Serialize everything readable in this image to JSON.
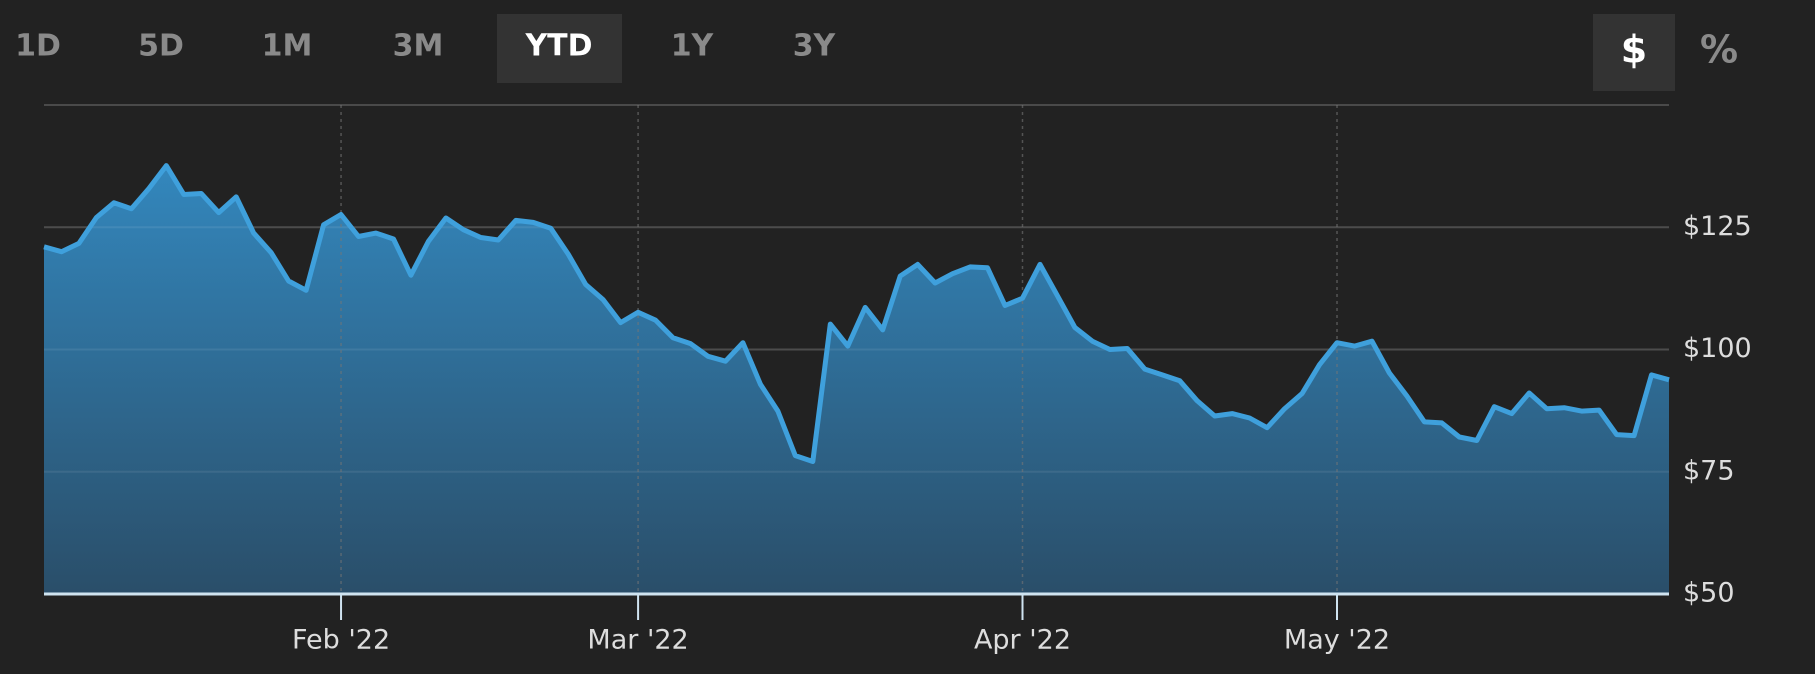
{
  "controls": {
    "ranges": [
      "1D",
      "5D",
      "1M",
      "3M",
      "YTD",
      "1Y",
      "3Y"
    ],
    "selected_range": 4,
    "units": [
      "$",
      "%"
    ],
    "selected_unit": 0
  },
  "chart_data": {
    "type": "area",
    "color": "#3fa0dc",
    "categories": [
      null,
      null,
      null,
      null,
      null,
      null,
      null,
      null,
      null,
      null,
      null,
      null,
      null,
      null,
      null,
      null,
      null,
      "Feb '22",
      null,
      null,
      null,
      null,
      null,
      null,
      null,
      null,
      null,
      null,
      null,
      null,
      null,
      null,
      null,
      null,
      "Mar '22",
      null,
      null,
      null,
      null,
      null,
      null,
      null,
      null,
      null,
      null,
      null,
      null,
      null,
      null,
      null,
      null,
      null,
      null,
      null,
      null,
      null,
      "Apr '22",
      null,
      null,
      null,
      null,
      null,
      null,
      null,
      null,
      null,
      null,
      null,
      null,
      null,
      null,
      null,
      null,
      null,
      "May '22",
      null,
      null,
      null,
      null,
      null,
      null,
      null,
      null,
      null,
      null,
      null,
      null,
      null,
      null,
      null,
      null,
      null,
      null,
      null
    ],
    "values": [
      121,
      120,
      121.7,
      127,
      130,
      128.8,
      132.9,
      137.6,
      131.7,
      131.9,
      128,
      131.2,
      123.8,
      119.8,
      114,
      112.1,
      125.5,
      127.6,
      123.1,
      123.8,
      122.6,
      115.2,
      122.1,
      126.9,
      124.5,
      122.9,
      122.4,
      126.4,
      126,
      124.8,
      119.5,
      113.3,
      110.2,
      105.5,
      107.6,
      106,
      102.4,
      101.2,
      98.6,
      97.6,
      101.4,
      92.9,
      87.4,
      78.3,
      77.1,
      105.2,
      100.7,
      108.6,
      104,
      115,
      117.4,
      113.6,
      115.5,
      116.9,
      116.7,
      109,
      110.5,
      117.4,
      111,
      104.5,
      101.7,
      100,
      100.2,
      96,
      94.8,
      93.6,
      89.5,
      86.4,
      86.9,
      86,
      84,
      87.9,
      91,
      96.9,
      101.4,
      100.7,
      101.7,
      95.2,
      90.5,
      85.2,
      85,
      82.1,
      81.4,
      88.3,
      86.9,
      91.1,
      87.9,
      88.1,
      87.4,
      87.6,
      82.6,
      82.4,
      94.8,
      93.8
    ],
    "ylim": [
      50,
      150
    ],
    "yticks": [
      {
        "value": 50,
        "label": "$50"
      },
      {
        "value": 75,
        "label": "$75"
      },
      {
        "value": 100,
        "label": "$100"
      },
      {
        "value": 125,
        "label": "$125"
      }
    ],
    "grid": true
  }
}
